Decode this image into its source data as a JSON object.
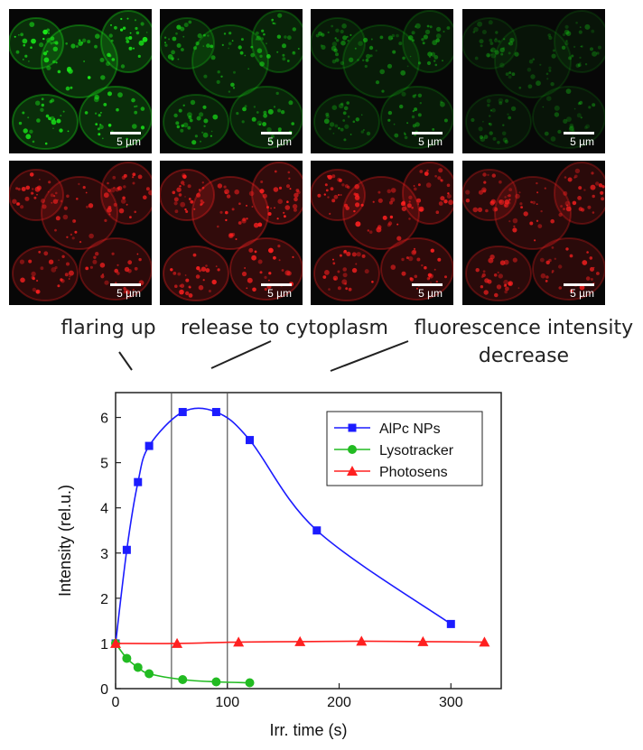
{
  "micrographs": {
    "scale_bar_label": "5 µm",
    "rows": [
      {
        "channel": "green",
        "color": "#19e619"
      },
      {
        "channel": "red",
        "color": "#ff2020"
      }
    ],
    "columns": 4
  },
  "phase_labels": [
    {
      "text": "flaring up"
    },
    {
      "text": "release to cytoplasm"
    },
    {
      "text": "fluorescence intensity\ndecrease"
    }
  ],
  "chart_data": {
    "type": "scatter",
    "title": "",
    "xlabel": "Irr. time (s)",
    "ylabel": "Intensity (rel.u.)",
    "xlim": [
      0,
      345
    ],
    "ylim": [
      0,
      6.55
    ],
    "xticks": [
      0,
      100,
      200,
      300
    ],
    "yticks": [
      0,
      1,
      2,
      3,
      4,
      5,
      6
    ],
    "vertical_lines": [
      50,
      100
    ],
    "grid": false,
    "legend_position": "top-right",
    "series": [
      {
        "name": "AlPc NPs",
        "color": "#1c1cff",
        "marker": "square",
        "x": [
          0,
          10,
          20,
          30,
          60,
          90,
          120,
          180,
          300
        ],
        "y": [
          1.0,
          3.07,
          4.57,
          5.37,
          6.12,
          6.12,
          5.5,
          3.5,
          1.43
        ]
      },
      {
        "name": "Lysotracker",
        "color": "#22bb22",
        "marker": "circle",
        "x": [
          0,
          10,
          20,
          30,
          60,
          90,
          120
        ],
        "y": [
          1.0,
          0.67,
          0.47,
          0.33,
          0.2,
          0.15,
          0.13
        ]
      },
      {
        "name": "Photosens",
        "color": "#ff2020",
        "marker": "triangle",
        "x": [
          0,
          55,
          110,
          165,
          220,
          275,
          330
        ],
        "y": [
          1.0,
          1.0,
          1.03,
          1.04,
          1.05,
          1.04,
          1.03
        ]
      }
    ]
  }
}
